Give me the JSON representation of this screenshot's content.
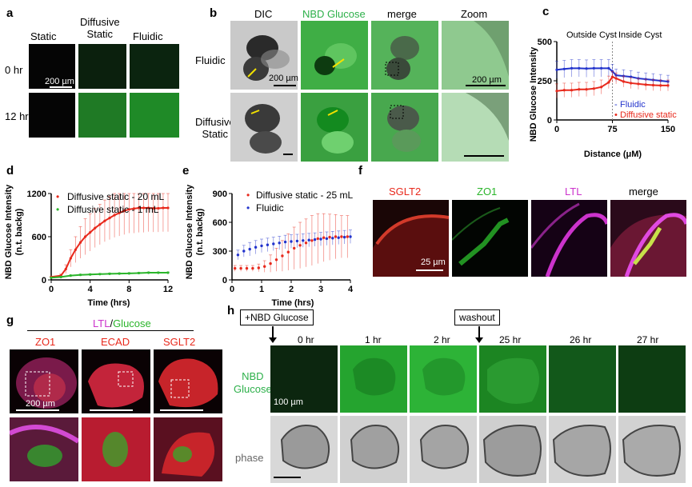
{
  "panel_letters": {
    "a": "a",
    "b": "b",
    "c": "c",
    "d": "d",
    "e": "e",
    "f": "f",
    "g": "g",
    "h": "h"
  },
  "panel_a": {
    "col_static": "Static",
    "col_diffusive": "Diffusive\nStatic",
    "col_fluidic": "Fluidic",
    "row_0": "0 hr",
    "row_12": "12 hr",
    "scale": "200 µm"
  },
  "panel_b": {
    "col_dic": "DIC",
    "col_nbd": "NBD Glucose",
    "col_merge": "merge",
    "col_zoom": "Zoom",
    "row_fluidic": "Fluidic",
    "row_diffusive": "Diffusive\nStatic",
    "scale1": "200 µm",
    "scale2": "200 µm"
  },
  "panel_f": {
    "sglt2": "SGLT2",
    "zo1": "ZO1",
    "ltl": "LTL",
    "merge": "merge",
    "scale": "25 µm"
  },
  "panel_g": {
    "header_ltl": "LTL",
    "header_slash": "/",
    "header_glucose": "Glucose",
    "col_zo1": "ZO1",
    "col_ecad": "ECAD",
    "col_sglt2": "SGLT2",
    "scale": "200 µm"
  },
  "panel_h": {
    "box_nbd": "+NBD Glucose",
    "box_washout": "washout",
    "times": [
      "0 hr",
      "1 hr",
      "2 hr",
      "25 hr",
      "26 hr",
      "27 hr"
    ],
    "row_nbd": "NBD\nGlucose",
    "row_phase": "phase",
    "scale": "100 µm"
  },
  "colors": {
    "red": "#e8291c",
    "green": "#2bb52b",
    "blue": "#2233cc",
    "magenta": "#cc33cc",
    "nbd_green": "#2db04a"
  },
  "chart_data": [
    {
      "id": "c",
      "type": "line",
      "ylabel": "NBD Glucose Intensity",
      "xlabel": "Distance (μM)",
      "xlim": [
        0,
        150
      ],
      "ylim": [
        0,
        500
      ],
      "xticks": [
        0,
        75,
        150
      ],
      "yticks": [
        0,
        250,
        500
      ],
      "annotations": [
        "Outside Cyst",
        "Inside Cyst"
      ],
      "divider_x": 75,
      "legend": "bottom-right",
      "series": [
        {
          "name": "Fluidic",
          "color": "#2233cc",
          "x": [
            0,
            10,
            20,
            30,
            40,
            50,
            60,
            70,
            75,
            80,
            90,
            100,
            110,
            120,
            130,
            140,
            150
          ],
          "y": [
            320,
            325,
            330,
            330,
            328,
            330,
            330,
            330,
            310,
            285,
            280,
            275,
            265,
            260,
            255,
            250,
            245
          ],
          "err": [
            55,
            55,
            55,
            55,
            55,
            55,
            55,
            55,
            45,
            40,
            40,
            40,
            40,
            40,
            40,
            40,
            40
          ]
        },
        {
          "name": "Diffusive static",
          "color": "#e8291c",
          "x": [
            0,
            10,
            20,
            30,
            40,
            50,
            60,
            70,
            75,
            80,
            90,
            100,
            110,
            120,
            130,
            140,
            150
          ],
          "y": [
            185,
            190,
            190,
            195,
            195,
            200,
            210,
            240,
            275,
            265,
            245,
            235,
            230,
            225,
            222,
            220,
            220
          ],
          "err": [
            45,
            45,
            45,
            45,
            45,
            45,
            45,
            40,
            35,
            35,
            35,
            35,
            35,
            35,
            35,
            35,
            35
          ]
        }
      ]
    },
    {
      "id": "d",
      "type": "line",
      "ylabel": "NBD Glucose Intensity\n(n.t. backg)",
      "xlabel": "Time (hrs)",
      "xlim": [
        0,
        12
      ],
      "ylim": [
        0,
        1200
      ],
      "xticks": [
        0,
        4,
        8,
        12
      ],
      "yticks": [
        0,
        600,
        1200
      ],
      "yticklabels": [
        "0",
        "600",
        "1200"
      ],
      "legend": "top-left",
      "series": [
        {
          "name": "Diffusive static - 20 mL",
          "color": "#e8291c",
          "x": [
            0,
            1,
            1.5,
            2,
            2.5,
            3,
            3.5,
            4,
            4.5,
            5,
            5.5,
            6,
            6.5,
            7,
            7.5,
            8,
            8.5,
            9,
            9.5,
            10,
            10.5,
            11,
            11.5,
            12
          ],
          "y": [
            40,
            60,
            150,
            300,
            420,
            520,
            600,
            660,
            720,
            770,
            820,
            860,
            900,
            930,
            960,
            980,
            990,
            1000,
            1000,
            1000,
            995,
            995,
            1000,
            1000
          ],
          "err": [
            10,
            20,
            60,
            120,
            180,
            220,
            250,
            260,
            270,
            280,
            290,
            300,
            310,
            320,
            330,
            330,
            340,
            340,
            340,
            330,
            330,
            330,
            330,
            330
          ]
        },
        {
          "name": "Diffusive static - 1 mL",
          "color": "#2bb52b",
          "x": [
            0,
            1,
            2,
            3,
            4,
            5,
            6,
            7,
            8,
            9,
            10,
            11,
            12
          ],
          "y": [
            30,
            40,
            60,
            70,
            75,
            80,
            85,
            88,
            90,
            95,
            100,
            100,
            100
          ],
          "err": [
            5,
            5,
            8,
            10,
            10,
            10,
            10,
            10,
            10,
            10,
            10,
            10,
            10
          ]
        }
      ]
    },
    {
      "id": "e",
      "type": "scatter",
      "ylabel": "NBD Glucose Intensity\n(n.t. backg)",
      "xlabel": "Time (hrs)",
      "xlim": [
        0,
        4
      ],
      "ylim": [
        0,
        900
      ],
      "xticks": [
        0,
        1,
        2,
        3,
        4
      ],
      "yticks": [
        0,
        300,
        600,
        900
      ],
      "legend": "top-left",
      "series": [
        {
          "name": "Diffusive static - 25 mL",
          "color": "#e8291c",
          "x": [
            0.1,
            0.3,
            0.5,
            0.7,
            0.9,
            1.1,
            1.3,
            1.5,
            1.7,
            1.9,
            2.1,
            2.3,
            2.5,
            2.7,
            2.9,
            3.1,
            3.3,
            3.5,
            3.7,
            3.9
          ],
          "y": [
            120,
            120,
            120,
            120,
            125,
            140,
            170,
            210,
            250,
            290,
            330,
            360,
            385,
            410,
            430,
            440,
            445,
            450,
            450,
            450
          ],
          "err": [
            30,
            30,
            30,
            30,
            40,
            60,
            90,
            120,
            160,
            190,
            220,
            240,
            250,
            260,
            260,
            250,
            240,
            230,
            220,
            220
          ]
        },
        {
          "name": "Fluidic",
          "color": "#2233cc",
          "x": [
            0.2,
            0.4,
            0.6,
            0.8,
            1.0,
            1.2,
            1.4,
            1.6,
            1.8,
            2.0,
            2.2,
            2.4,
            2.6,
            2.8,
            3.0,
            3.2,
            3.4,
            3.6,
            3.8,
            4.0
          ],
          "y": [
            260,
            300,
            320,
            340,
            355,
            365,
            375,
            385,
            395,
            400,
            405,
            410,
            415,
            420,
            425,
            430,
            435,
            440,
            445,
            450
          ],
          "err": [
            50,
            60,
            70,
            70,
            70,
            70,
            70,
            70,
            70,
            70,
            70,
            70,
            70,
            70,
            70,
            70,
            70,
            70,
            70,
            70
          ]
        }
      ]
    }
  ]
}
